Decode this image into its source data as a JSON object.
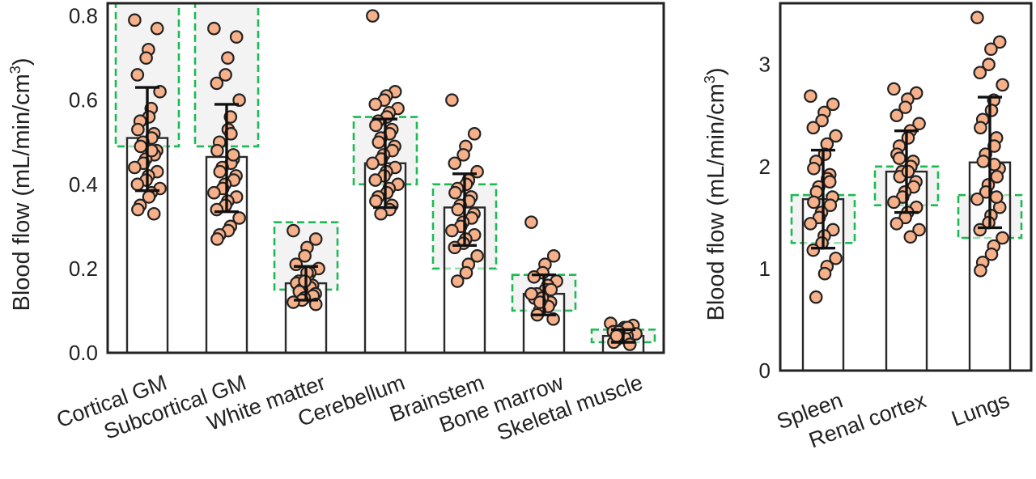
{
  "colors": {
    "point_fill": "#f6b18a",
    "point_stroke": "#222222",
    "bar_fill": "#ffffff",
    "bar_stroke": "#2a2a2a",
    "errorbar": "#111111",
    "reference_box": "#1db954",
    "reference_fill": "#efefef",
    "axes": "#222222"
  },
  "chart_data": [
    {
      "type": "bar",
      "ylabel_prefix": "Blood flow (mL/min/cm",
      "ylabel_sup": "3",
      "ylabel_suffix": ")",
      "ylim": [
        0,
        0.83
      ],
      "yticks": [
        "0.0",
        "0.2",
        "0.4",
        "0.6",
        "0.8"
      ],
      "ytick_values": [
        0.0,
        0.2,
        0.4,
        0.6,
        0.8
      ],
      "grid": false,
      "categories": [
        "Cortical GM",
        "Subcortical GM",
        "White matter",
        "Cerebellum",
        "Brainstem",
        "Bone marrow",
        "Skeletal muscle"
      ],
      "values": [
        0.51,
        0.465,
        0.165,
        0.45,
        0.345,
        0.14,
        0.04
      ],
      "error_low": [
        0.385,
        0.335,
        0.125,
        0.345,
        0.255,
        0.09,
        0.025
      ],
      "error_high": [
        0.63,
        0.59,
        0.205,
        0.555,
        0.425,
        0.185,
        0.055
      ],
      "reference_ranges": [
        [
          0.49,
          0.83
        ],
        [
          0.49,
          0.83
        ],
        [
          0.15,
          0.31
        ],
        [
          0.4,
          0.56
        ],
        [
          0.2,
          0.4
        ],
        [
          0.1,
          0.185
        ],
        [
          0.025,
          0.055
        ]
      ],
      "points": [
        [
          0.79,
          0.77,
          0.72,
          0.7,
          0.66,
          0.62,
          0.58,
          0.56,
          0.55,
          0.53,
          0.52,
          0.51,
          0.5,
          0.49,
          0.48,
          0.47,
          0.46,
          0.45,
          0.44,
          0.43,
          0.42,
          0.41,
          0.4,
          0.39,
          0.38,
          0.37,
          0.35,
          0.34,
          0.33,
          0.48
        ],
        [
          0.77,
          0.75,
          0.7,
          0.66,
          0.64,
          0.6,
          0.56,
          0.53,
          0.5,
          0.48,
          0.46,
          0.45,
          0.44,
          0.43,
          0.42,
          0.41,
          0.4,
          0.39,
          0.38,
          0.37,
          0.36,
          0.35,
          0.34,
          0.32,
          0.3,
          0.29,
          0.28,
          0.27,
          0.47,
          0.52
        ],
        [
          0.29,
          0.27,
          0.25,
          0.23,
          0.21,
          0.2,
          0.19,
          0.18,
          0.17,
          0.165,
          0.16,
          0.155,
          0.15,
          0.145,
          0.14,
          0.135,
          0.13,
          0.125,
          0.12,
          0.115,
          0.19,
          0.17
        ],
        [
          0.8,
          0.62,
          0.61,
          0.6,
          0.59,
          0.58,
          0.57,
          0.56,
          0.55,
          0.54,
          0.53,
          0.52,
          0.51,
          0.5,
          0.49,
          0.48,
          0.47,
          0.46,
          0.45,
          0.44,
          0.43,
          0.42,
          0.41,
          0.4,
          0.39,
          0.38,
          0.37,
          0.36,
          0.35,
          0.34,
          0.33
        ],
        [
          0.6,
          0.52,
          0.49,
          0.47,
          0.45,
          0.43,
          0.41,
          0.4,
          0.39,
          0.38,
          0.37,
          0.36,
          0.35,
          0.34,
          0.33,
          0.32,
          0.31,
          0.3,
          0.29,
          0.28,
          0.27,
          0.26,
          0.25,
          0.23,
          0.21,
          0.19,
          0.17
        ],
        [
          0.31,
          0.23,
          0.21,
          0.19,
          0.18,
          0.17,
          0.16,
          0.15,
          0.14,
          0.13,
          0.12,
          0.11,
          0.1,
          0.09,
          0.08,
          0.15,
          0.13,
          0.12,
          0.14
        ],
        [
          0.07,
          0.065,
          0.06,
          0.055,
          0.05,
          0.045,
          0.04,
          0.035,
          0.03,
          0.025,
          0.02,
          0.06,
          0.05,
          0.04
        ]
      ]
    },
    {
      "type": "bar",
      "ylabel_prefix": "Blood flow (mL/min/cm",
      "ylabel_sup": "3",
      "ylabel_suffix": ")",
      "ylim": [
        0,
        3.6
      ],
      "yticks": [
        "0",
        "1",
        "2",
        "3"
      ],
      "ytick_values": [
        0,
        1,
        2,
        3
      ],
      "grid": false,
      "categories": [
        "Spleen",
        "Renal cortex",
        "Lungs"
      ],
      "values": [
        1.68,
        1.95,
        2.04
      ],
      "error_low": [
        1.2,
        1.55,
        1.4
      ],
      "error_high": [
        2.16,
        2.35,
        2.68
      ],
      "reference_ranges": [
        [
          1.25,
          1.72
        ],
        [
          1.62,
          2.0
        ],
        [
          1.3,
          1.72
        ]
      ],
      "points": [
        [
          2.69,
          2.61,
          2.53,
          2.45,
          2.38,
          2.3,
          2.22,
          2.12,
          2.05,
          1.98,
          1.92,
          1.88,
          1.8,
          1.75,
          1.7,
          1.62,
          1.55,
          1.5,
          1.44,
          1.38,
          1.32,
          1.25,
          1.18,
          1.1,
          1.02,
          0.95,
          0.72,
          1.65,
          1.85
        ],
        [
          2.76,
          2.72,
          2.66,
          2.58,
          2.5,
          2.42,
          2.35,
          2.28,
          2.2,
          2.12,
          2.05,
          2.0,
          1.95,
          1.9,
          1.85,
          1.8,
          1.75,
          1.7,
          1.65,
          1.6,
          1.55,
          1.5,
          1.44,
          1.38,
          1.31,
          1.95,
          2.08
        ],
        [
          3.46,
          3.22,
          3.15,
          3.0,
          2.92,
          2.8,
          2.65,
          2.55,
          2.46,
          2.38,
          2.28,
          2.2,
          2.12,
          2.05,
          1.98,
          1.9,
          1.82,
          1.75,
          1.68,
          1.6,
          1.52,
          1.45,
          1.38,
          1.3,
          1.22,
          1.14,
          1.06,
          0.98,
          1.7,
          2.02
        ]
      ]
    }
  ]
}
